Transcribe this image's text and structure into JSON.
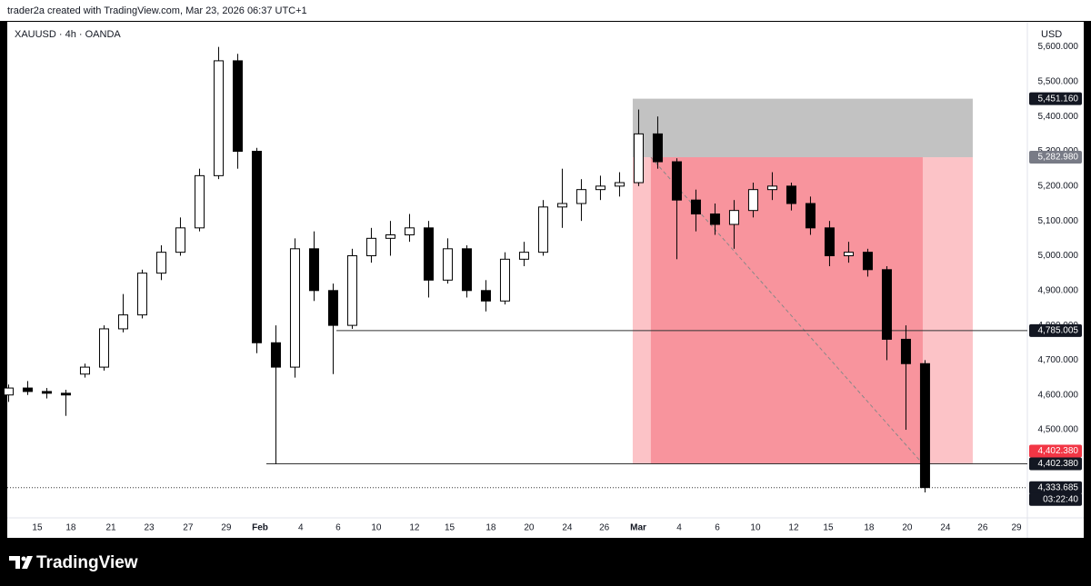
{
  "header": {
    "caption": "trader2a created with TradingView.com, Mar 23, 2026 06:37 UTC+1"
  },
  "chart_data": {
    "type": "candlestick",
    "title": "XAUUSD · 4h · OANDA",
    "y_axis_label": "USD",
    "x": [
      -1.5,
      -0.5,
      0.5,
      1.5,
      2.5,
      3.5,
      4.5,
      5.5,
      6.5,
      7.5,
      8.5,
      9.5,
      10.5,
      11.5,
      12.5,
      13.5,
      14.5,
      15.5,
      16.5,
      17.5,
      18.5,
      19.5,
      20.5,
      21.5,
      22.5,
      23.5,
      24.5,
      25.5,
      26.5,
      27.5,
      28.5,
      29.5,
      30.5,
      31.5,
      32.5,
      33.5,
      34.5,
      35.5,
      36.5,
      37.5,
      38.5,
      39.5,
      40.5,
      41.5,
      42.5,
      43.5,
      44.5,
      45.5,
      46.5
    ],
    "open": [
      4600,
      4620,
      4610,
      4605,
      4660,
      4680,
      4790,
      4830,
      4950,
      5010,
      5080,
      5230,
      5560,
      5300,
      4750,
      4680,
      5020,
      4900,
      4800,
      5000,
      5050,
      5060,
      5080,
      4930,
      5020,
      4900,
      4870,
      4990,
      5010,
      5140,
      5150,
      5190,
      5200,
      5210,
      5350,
      5270,
      5160,
      5120,
      5090,
      5130,
      5190,
      5200,
      5150,
      5080,
      5000,
      5010,
      4960,
      4760,
      4690
    ],
    "high": [
      4630,
      4640,
      4620,
      4615,
      4690,
      4800,
      4890,
      4960,
      5030,
      5110,
      5250,
      5600,
      5580,
      5310,
      4800,
      5050,
      5070,
      4920,
      5020,
      5080,
      5100,
      5120,
      5100,
      5050,
      5030,
      4930,
      5010,
      5040,
      5160,
      5250,
      5220,
      5230,
      5240,
      5420,
      5400,
      5280,
      5190,
      5150,
      5160,
      5210,
      5240,
      5210,
      5170,
      5100,
      5040,
      5020,
      4970,
      4800,
      4700
    ],
    "low": [
      4580,
      4600,
      4590,
      4540,
      4650,
      4670,
      4780,
      4820,
      4930,
      5000,
      5070,
      5220,
      5250,
      4720,
      4402,
      4650,
      4870,
      4660,
      4790,
      4980,
      5000,
      5040,
      4880,
      4920,
      4880,
      4840,
      4860,
      4970,
      5000,
      5080,
      5100,
      5160,
      5170,
      5200,
      5250,
      4990,
      5070,
      5060,
      5020,
      5110,
      5160,
      5130,
      5060,
      4970,
      4980,
      4940,
      4700,
      4500,
      4320
    ],
    "close": [
      4620,
      4610,
      4605,
      4600,
      4680,
      4790,
      4830,
      4950,
      5010,
      5080,
      5230,
      5560,
      5300,
      4750,
      4680,
      5020,
      4900,
      4800,
      5000,
      5050,
      5060,
      5080,
      4930,
      5020,
      4900,
      4870,
      4990,
      5010,
      5140,
      5150,
      5190,
      5200,
      5210,
      5350,
      5270,
      5160,
      5120,
      5090,
      5130,
      5190,
      5200,
      5150,
      5080,
      5000,
      5010,
      4960,
      4760,
      4690,
      4334
    ],
    "up_color": "#ffffff",
    "down_color": "#000000",
    "xlim": [
      -1.57,
      51.86
    ],
    "ylim": [
      4247,
      5672
    ],
    "xticks": [
      {
        "value": 0,
        "label": "15"
      },
      {
        "value": 1.76,
        "label": "18"
      },
      {
        "value": 3.86,
        "label": "21"
      },
      {
        "value": 5.86,
        "label": "23"
      },
      {
        "value": 7.9,
        "label": "27"
      },
      {
        "value": 9.9,
        "label": "29"
      },
      {
        "value": 11.67,
        "label": "Feb"
      },
      {
        "value": 13.8,
        "label": "4"
      },
      {
        "value": 15.76,
        "label": "6"
      },
      {
        "value": 17.76,
        "label": "10"
      },
      {
        "value": 19.76,
        "label": "12"
      },
      {
        "value": 21.6,
        "label": "15"
      },
      {
        "value": 23.76,
        "label": "18"
      },
      {
        "value": 25.76,
        "label": "20"
      },
      {
        "value": 27.76,
        "label": "24"
      },
      {
        "value": 29.7,
        "label": "26"
      },
      {
        "value": 31.48,
        "label": "Mar"
      },
      {
        "value": 33.62,
        "label": "4"
      },
      {
        "value": 35.62,
        "label": "6"
      },
      {
        "value": 37.62,
        "label": "10"
      },
      {
        "value": 39.62,
        "label": "12"
      },
      {
        "value": 41.43,
        "label": "15"
      },
      {
        "value": 43.57,
        "label": "18"
      },
      {
        "value": 45.57,
        "label": "20"
      },
      {
        "value": 47.57,
        "label": "24"
      },
      {
        "value": 49.52,
        "label": "26"
      },
      {
        "value": 51.29,
        "label": "29"
      }
    ],
    "yticks": [
      {
        "value": 4500,
        "label": "4,500.000"
      },
      {
        "value": 4600,
        "label": "4,600.000"
      },
      {
        "value": 4700,
        "label": "4,700.000"
      },
      {
        "value": 4800,
        "label": "4,800.000"
      },
      {
        "value": 4900,
        "label": "4,900.000"
      },
      {
        "value": 5000,
        "label": "5,000.000"
      },
      {
        "value": 5100,
        "label": "5,100.000"
      },
      {
        "value": 5200,
        "label": "5,200.000"
      },
      {
        "value": 5300,
        "label": "5,300.000"
      },
      {
        "value": 5400,
        "label": "5,400.000"
      },
      {
        "value": 5500,
        "label": "5,500.000"
      },
      {
        "value": 5600,
        "label": "5,600.000"
      }
    ],
    "position": {
      "entry": {
        "value": 5282.98,
        "label": "5,282.980"
      },
      "stop": {
        "value": 5451.16,
        "label": "5,451.160"
      },
      "target": {
        "value": 4402.38,
        "label": "4,402.380"
      },
      "x_start": 31.19,
      "x_inner_start": 32.14,
      "x_inner_end": 46.38,
      "x_end": 49.0
    },
    "levels": [
      {
        "value": 4785.005,
        "label": "4,785.005",
        "x_start": 15.67
      },
      {
        "value": 4402.38,
        "label": "4,402.380",
        "x_start": 12.0
      }
    ],
    "last_price": {
      "value": 4333.685,
      "label": "4,333.685",
      "countdown": "03:22:40"
    }
  },
  "footer": {
    "brand": "TradingView"
  }
}
